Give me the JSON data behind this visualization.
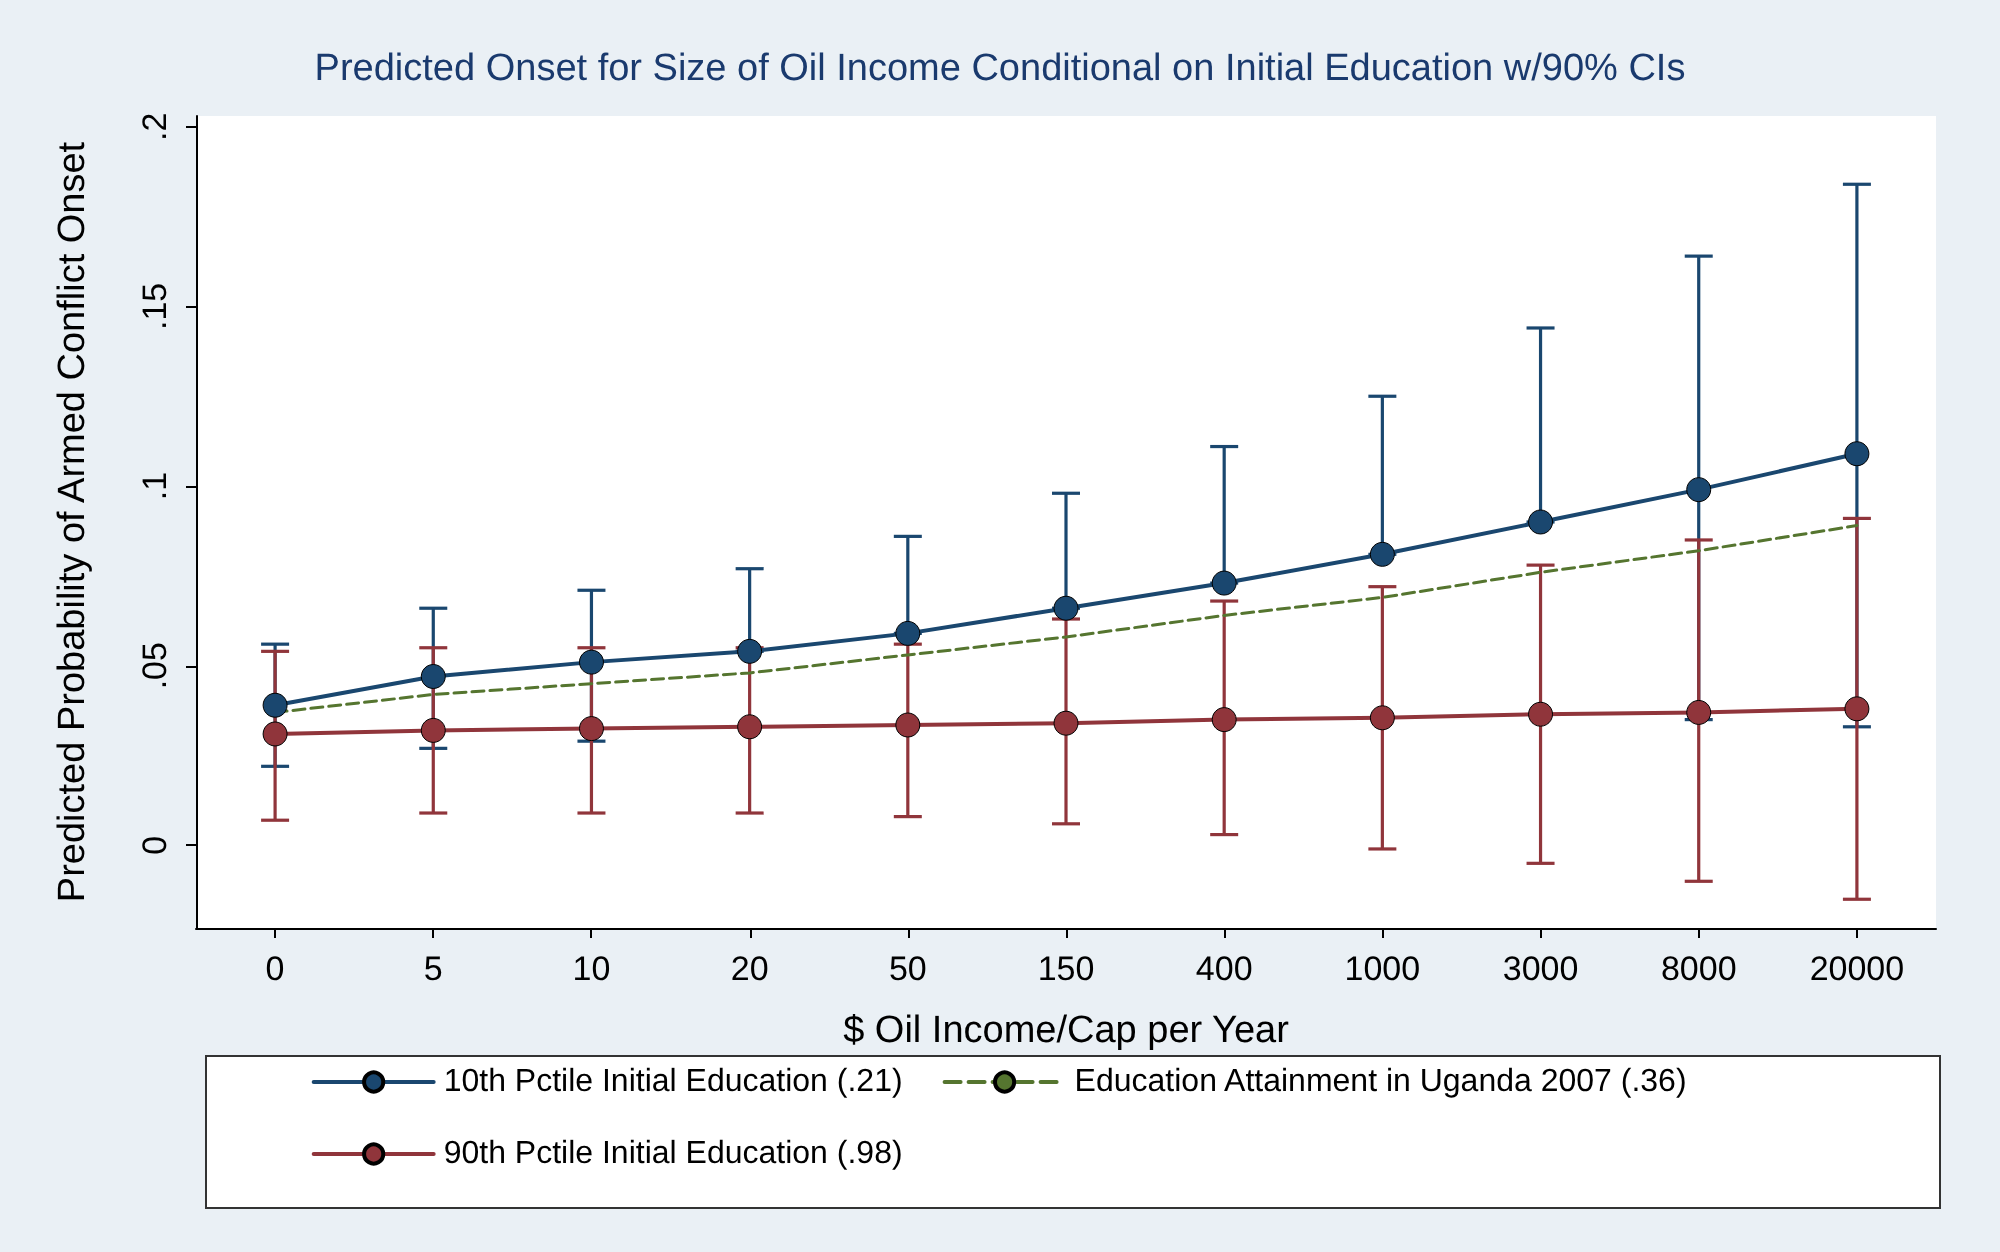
{
  "chart_data": {
    "type": "line",
    "title": "Predicted Onset for Size of Oil Income Conditional on Initial Education w/90% CIs",
    "xlabel": "$ Oil Income/Cap per Year",
    "ylabel": "Predicted Probability of Armed Conflict Onset",
    "categories": [
      "0",
      "5",
      "10",
      "20",
      "50",
      "150",
      "400",
      "1000",
      "3000",
      "8000",
      "20000"
    ],
    "series": [
      {
        "name": "10th Pctile Initial Education (.21)",
        "color": "#1a476f",
        "marker": "circle",
        "line_style": "solid",
        "values": [
          0.039,
          0.047,
          0.051,
          0.054,
          0.059,
          0.066,
          0.073,
          0.081,
          0.09,
          0.099,
          0.109
        ],
        "errors": [
          [
            0.022,
            0.056
          ],
          [
            0.027,
            0.066
          ],
          [
            0.029,
            0.071
          ],
          [
            0.054,
            0.077
          ],
          [
            0.059,
            0.086
          ],
          [
            0.066,
            0.098
          ],
          [
            0.073,
            0.111
          ],
          [
            0.081,
            0.125
          ],
          [
            0.09,
            0.144
          ],
          [
            0.035,
            0.164
          ],
          [
            0.033,
            0.184
          ]
        ]
      },
      {
        "name": "Education Attainment in Uganda 2007 (.36)",
        "color": "#55752f",
        "marker": "none",
        "line_style": "dashed",
        "values": [
          0.037,
          0.042,
          0.045,
          0.048,
          0.053,
          0.058,
          0.064,
          0.069,
          0.076,
          0.082,
          0.089
        ]
      },
      {
        "name": "90th Pctile Initial Education (.98)",
        "color": "#90353b",
        "marker": "circle",
        "line_style": "solid",
        "values": [
          0.031,
          0.032,
          0.0325,
          0.033,
          0.0335,
          0.034,
          0.035,
          0.0355,
          0.0365,
          0.037,
          0.038
        ],
        "errors": [
          [
            0.007,
            0.054
          ],
          [
            0.009,
            0.055
          ],
          [
            0.009,
            0.055
          ],
          [
            0.009,
            0.055
          ],
          [
            0.008,
            0.056
          ],
          [
            0.006,
            0.063
          ],
          [
            0.003,
            0.068
          ],
          [
            -0.001,
            0.072
          ],
          [
            -0.005,
            0.078
          ],
          [
            -0.01,
            0.085
          ],
          [
            -0.015,
            0.091
          ]
        ]
      }
    ],
    "ylim": [
      -0.023,
      0.203
    ],
    "yticks": [
      {
        "value": 0,
        "label": "0"
      },
      {
        "value": 0.05,
        "label": ".05"
      },
      {
        "value": 0.1,
        "label": ".1"
      },
      {
        "value": 0.15,
        "label": ".15"
      },
      {
        "value": 0.2,
        "label": ".2"
      }
    ],
    "grid": false,
    "legend": "bottom"
  }
}
